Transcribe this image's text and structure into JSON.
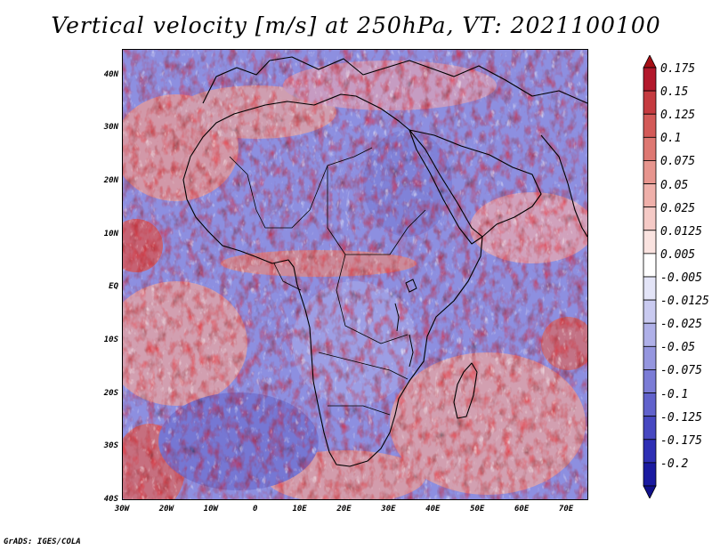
{
  "title": "Vertical velocity [m/s] at 250hPa, VT: 2021100100",
  "credit": "GrADS: IGES/COLA",
  "map": {
    "region": "Africa",
    "projection": "lat-lon",
    "lon_range": [
      -30,
      75
    ],
    "lat_range": [
      -40,
      45
    ],
    "lat_ticks": [
      "40N",
      "30N",
      "20N",
      "10N",
      "EQ",
      "10S",
      "20S",
      "30S",
      "40S"
    ],
    "lat_values": [
      40,
      30,
      20,
      10,
      0,
      -10,
      -20,
      -30,
      -40
    ],
    "lon_ticks": [
      "30W",
      "20W",
      "10W",
      "0",
      "10E",
      "20E",
      "30E",
      "40E",
      "50E",
      "60E",
      "70E"
    ],
    "lon_values": [
      -30,
      -20,
      -10,
      0,
      10,
      20,
      30,
      40,
      50,
      60,
      70
    ],
    "field": "vertical velocity",
    "units": "m/s",
    "level": "250hPa",
    "valid_time": "2021100100"
  },
  "colorbar": {
    "orientation": "vertical",
    "extend": "both",
    "labels": [
      "0.175",
      "0.15",
      "0.125",
      "0.1",
      "0.075",
      "0.05",
      "0.025",
      "0.0125",
      "0.005",
      "-0.005",
      "-0.0125",
      "-0.025",
      "-0.05",
      "-0.075",
      "-0.1",
      "-0.125",
      "-0.175",
      "-0.2"
    ],
    "colors": [
      "#b2182b",
      "#c53b40",
      "#d35a58",
      "#de7872",
      "#e7958e",
      "#efb0aa",
      "#f5cac6",
      "#fae3e0",
      "#ffffff",
      "#e3e4f7",
      "#c9caf0",
      "#afb0e8",
      "#9596df",
      "#7b7cd6",
      "#6162cc",
      "#4748c1",
      "#2e2fb4",
      "#1a1aa0"
    ],
    "top_triangle_color": "#a50f15",
    "bottom_triangle_color": "#10108a"
  }
}
